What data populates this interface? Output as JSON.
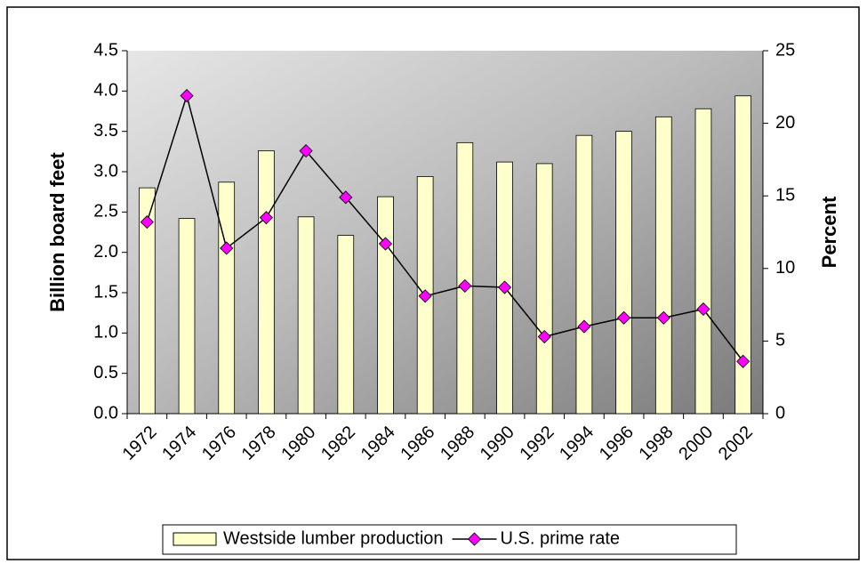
{
  "chart_data": {
    "type": "bar",
    "categories": [
      "1972",
      "1974",
      "1976",
      "1978",
      "1980",
      "1982",
      "1984",
      "1986",
      "1988",
      "1990",
      "1992",
      "1994",
      "1996",
      "1998",
      "2000",
      "2002"
    ],
    "series": [
      {
        "name": "Westside lumber production",
        "type": "bar",
        "color": "#ffffcc",
        "values": [
          2.8,
          2.42,
          2.87,
          3.26,
          2.44,
          2.21,
          2.69,
          2.94,
          3.36,
          3.12,
          3.1,
          3.45,
          3.5,
          3.68,
          3.78,
          3.94
        ]
      },
      {
        "name": "U.S. prime rate",
        "type": "line",
        "axis": "y2",
        "color": "#000000",
        "marker_color": "#ff00ff",
        "values": [
          13.2,
          21.9,
          11.4,
          13.5,
          18.1,
          14.9,
          11.7,
          8.1,
          8.8,
          8.7,
          5.3,
          6.0,
          6.6,
          6.6,
          7.2,
          3.6
        ]
      }
    ],
    "ylabel": "Billion board feet",
    "y2label": "Percent",
    "ylim": [
      0,
      4.5
    ],
    "yticks": [
      {
        "value": 0,
        "label": "0.0"
      },
      0.5,
      {
        "value": 1,
        "label": "1.0"
      },
      1.5,
      {
        "value": 2,
        "label": "2.0"
      },
      2.5,
      {
        "value": 3,
        "label": "3.0"
      },
      3.5,
      {
        "value": 4,
        "label": "4.0"
      },
      4.5
    ],
    "y2lim": [
      0,
      25
    ],
    "y2ticks": [
      0,
      5,
      10,
      15,
      20,
      25
    ],
    "legend": "bottom"
  }
}
